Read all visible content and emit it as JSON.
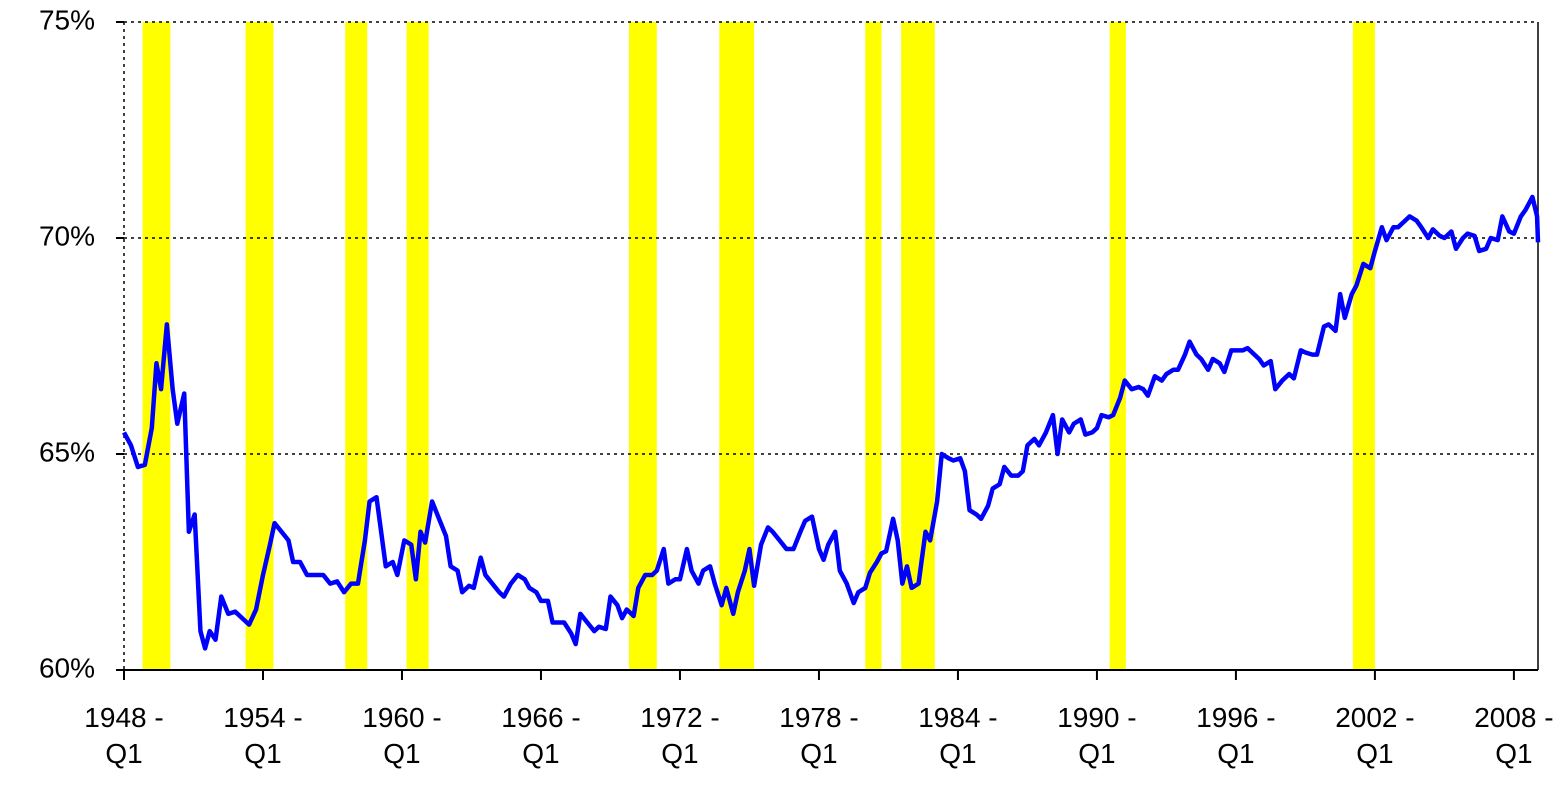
{
  "chart_data": {
    "type": "line",
    "x": [
      1948.0,
      1948.3,
      1948.6,
      1948.9,
      1949.2,
      1949.4,
      1949.6,
      1949.85,
      1950.1,
      1950.3,
      1950.6,
      1950.8,
      1951.05,
      1951.3,
      1951.5,
      1951.7,
      1951.95,
      1952.2,
      1952.5,
      1952.8,
      1953.1,
      1953.4,
      1953.7,
      1954.0,
      1954.3,
      1954.5,
      1954.8,
      1955.1,
      1955.3,
      1955.6,
      1955.9,
      1956.3,
      1956.6,
      1956.9,
      1957.2,
      1957.5,
      1957.8,
      1958.1,
      1958.4,
      1958.6,
      1958.9,
      1959.1,
      1959.3,
      1959.6,
      1959.8,
      1960.1,
      1960.4,
      1960.6,
      1960.8,
      1961.0,
      1961.3,
      1961.6,
      1961.9,
      1962.1,
      1962.4,
      1962.6,
      1962.9,
      1963.1,
      1963.4,
      1963.6,
      1963.9,
      1964.2,
      1964.4,
      1964.7,
      1965.0,
      1965.3,
      1965.5,
      1965.8,
      1966.0,
      1966.3,
      1966.5,
      1966.8,
      1967.0,
      1967.3,
      1967.5,
      1967.7,
      1968.0,
      1968.3,
      1968.5,
      1968.8,
      1969.0,
      1969.3,
      1969.5,
      1969.7,
      1970.0,
      1970.2,
      1970.5,
      1970.8,
      1971.0,
      1971.3,
      1971.5,
      1971.8,
      1972.0,
      1972.3,
      1972.5,
      1972.8,
      1973.0,
      1973.3,
      1973.5,
      1973.8,
      1974.0,
      1974.3,
      1974.5,
      1974.8,
      1975.0,
      1975.2,
      1975.5,
      1975.8,
      1976.0,
      1976.3,
      1976.6,
      1976.9,
      1977.2,
      1977.4,
      1977.7,
      1978.0,
      1978.2,
      1978.4,
      1978.7,
      1978.9,
      1979.2,
      1979.5,
      1979.7,
      1980.0,
      1980.2,
      1980.5,
      1980.7,
      1980.9,
      1981.2,
      1981.4,
      1981.6,
      1981.8,
      1982.0,
      1982.3,
      1982.6,
      1982.8,
      1983.1,
      1983.3,
      1983.6,
      1983.8,
      1984.1,
      1984.3,
      1984.5,
      1984.8,
      1985.0,
      1985.3,
      1985.5,
      1985.8,
      1986.0,
      1986.3,
      1986.6,
      1986.8,
      1987.0,
      1987.3,
      1987.5,
      1987.8,
      1988.1,
      1988.3,
      1988.5,
      1988.8,
      1989.0,
      1989.3,
      1989.5,
      1989.8,
      1990.0,
      1990.2,
      1990.5,
      1990.7,
      1991.0,
      1991.2,
      1991.5,
      1991.8,
      1992.0,
      1992.2,
      1992.5,
      1992.8,
      1993.0,
      1993.3,
      1993.5,
      1993.8,
      1994.0,
      1994.3,
      1994.5,
      1994.8,
      1995.0,
      1995.3,
      1995.5,
      1995.8,
      1996.0,
      1996.3,
      1996.5,
      1996.8,
      1997.0,
      1997.2,
      1997.5,
      1997.7,
      1998.0,
      1998.3,
      1998.5,
      1998.8,
      1999.0,
      1999.3,
      1999.5,
      1999.8,
      2000.0,
      2000.3,
      2000.5,
      2000.7,
      2001.0,
      2001.2,
      2001.5,
      2001.8,
      2002.0,
      2002.3,
      2002.5,
      2002.8,
      2003.0,
      2003.3,
      2003.5,
      2003.8,
      2004.0,
      2004.3,
      2004.5,
      2004.8,
      2005.0,
      2005.3,
      2005.5,
      2005.8,
      2006.0,
      2006.3,
      2006.5,
      2006.8,
      2007.0,
      2007.3,
      2007.5,
      2007.8,
      2008.0,
      2008.3,
      2008.5,
      2008.8,
      2009.0,
      2009.04
    ],
    "series": [
      {
        "color": "#0000ff",
        "values": [
          65.5,
          65.2,
          64.7,
          64.75,
          65.6,
          67.1,
          66.5,
          68.0,
          66.5,
          65.7,
          66.4,
          63.2,
          63.6,
          60.9,
          60.5,
          60.9,
          60.7,
          61.7,
          61.3,
          61.35,
          61.2,
          61.05,
          61.4,
          62.2,
          62.9,
          63.4,
          63.2,
          63.0,
          62.5,
          62.5,
          62.2,
          62.2,
          62.2,
          62.0,
          62.05,
          61.8,
          62.0,
          62.0,
          63.0,
          63.9,
          64.0,
          63.2,
          62.4,
          62.5,
          62.2,
          63.0,
          62.9,
          62.1,
          63.2,
          62.95,
          63.9,
          63.5,
          63.1,
          62.4,
          62.3,
          61.8,
          61.95,
          61.9,
          62.6,
          62.2,
          62.0,
          61.8,
          61.7,
          62.0,
          62.2,
          62.1,
          61.9,
          61.8,
          61.6,
          61.6,
          61.1,
          61.1,
          61.1,
          60.85,
          60.6,
          61.3,
          61.1,
          60.9,
          61.0,
          60.95,
          61.7,
          61.5,
          61.2,
          61.4,
          61.25,
          61.9,
          62.2,
          62.2,
          62.3,
          62.8,
          62.0,
          62.1,
          62.1,
          62.8,
          62.3,
          62.0,
          62.3,
          62.4,
          62.0,
          61.5,
          61.9,
          61.3,
          61.8,
          62.3,
          62.8,
          61.95,
          62.9,
          63.3,
          63.2,
          63.0,
          62.8,
          62.8,
          63.2,
          63.45,
          63.55,
          62.8,
          62.55,
          62.9,
          63.2,
          62.3,
          62.0,
          61.55,
          61.8,
          61.9,
          62.25,
          62.5,
          62.7,
          62.75,
          63.5,
          63.0,
          62.0,
          62.4,
          61.9,
          62.0,
          63.2,
          63.0,
          63.9,
          65.0,
          64.9,
          64.85,
          64.9,
          64.6,
          63.7,
          63.6,
          63.5,
          63.8,
          64.2,
          64.3,
          64.7,
          64.5,
          64.5,
          64.6,
          65.2,
          65.35,
          65.2,
          65.5,
          65.9,
          65.0,
          65.8,
          65.5,
          65.7,
          65.8,
          65.45,
          65.5,
          65.6,
          65.9,
          65.85,
          65.9,
          66.3,
          66.7,
          66.5,
          66.55,
          66.5,
          66.35,
          66.8,
          66.7,
          66.85,
          66.95,
          66.95,
          67.3,
          67.6,
          67.3,
          67.2,
          66.95,
          67.2,
          67.1,
          66.9,
          67.4,
          67.4,
          67.4,
          67.45,
          67.3,
          67.2,
          67.05,
          67.15,
          66.5,
          66.7,
          66.85,
          66.75,
          67.4,
          67.35,
          67.3,
          67.3,
          67.95,
          68.0,
          67.85,
          68.7,
          68.15,
          68.7,
          68.9,
          69.4,
          69.3,
          69.7,
          70.25,
          69.95,
          70.25,
          70.25,
          70.4,
          70.5,
          70.4,
          70.25,
          70.0,
          70.2,
          70.05,
          70.0,
          70.15,
          69.75,
          70.0,
          70.1,
          70.05,
          69.7,
          69.75,
          70.0,
          69.95,
          70.5,
          70.15,
          70.1,
          70.5,
          70.65,
          70.95,
          70.5,
          69.9
        ]
      }
    ],
    "recessions": [
      {
        "start": 1948.8,
        "end": 1950.0
      },
      {
        "start": 1953.25,
        "end": 1954.45
      },
      {
        "start": 1957.55,
        "end": 1958.5
      },
      {
        "start": 1960.2,
        "end": 1961.15
      },
      {
        "start": 1969.8,
        "end": 1971.0
      },
      {
        "start": 1973.7,
        "end": 1975.2
      },
      {
        "start": 1980.0,
        "end": 1980.7
      },
      {
        "start": 1981.55,
        "end": 1983.0
      },
      {
        "start": 1990.55,
        "end": 1991.25
      },
      {
        "start": 2001.05,
        "end": 2002.0
      }
    ],
    "recession_color": "#ffff00",
    "xlim": [
      1948,
      2009.04
    ],
    "xticks": [
      {
        "value": 1948,
        "label": "1948 - Q1"
      },
      {
        "value": 1954,
        "label": "1954 - Q1"
      },
      {
        "value": 1960,
        "label": "1960 - Q1"
      },
      {
        "value": 1966,
        "label": "1966 - Q1"
      },
      {
        "value": 1972,
        "label": "1972 - Q1"
      },
      {
        "value": 1978,
        "label": "1978 - Q1"
      },
      {
        "value": 1984,
        "label": "1984 - Q1"
      },
      {
        "value": 1990,
        "label": "1990 - Q1"
      },
      {
        "value": 1996,
        "label": "1996 - Q1"
      },
      {
        "value": 2002,
        "label": "2002 - Q1"
      },
      {
        "value": 2008,
        "label": "2008 - Q1"
      }
    ],
    "ylim": [
      60,
      75
    ],
    "yticks": [
      {
        "value": 60,
        "label": "60%"
      },
      {
        "value": 65,
        "label": "65%"
      },
      {
        "value": 70,
        "label": "70%"
      },
      {
        "value": 75,
        "label": "75%"
      }
    ],
    "grid": true
  }
}
